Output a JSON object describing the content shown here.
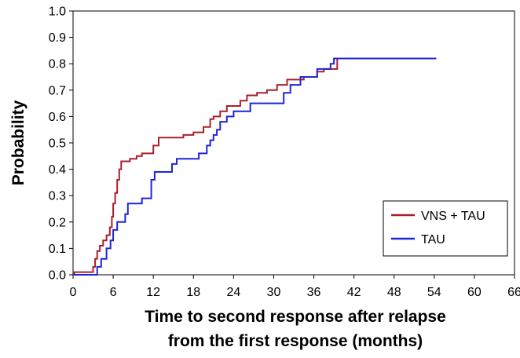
{
  "chart_data": {
    "type": "line",
    "step": true,
    "xlabel": [
      "Time to second response after relapse",
      "from the first response (months)"
    ],
    "ylabel": "Probability",
    "xlim": [
      0,
      66
    ],
    "ylim": [
      0,
      1.0
    ],
    "xticks": [
      "0",
      "6",
      "12",
      "18",
      "24",
      "30",
      "36",
      "42",
      "48",
      "54",
      "60",
      "66"
    ],
    "yticks": [
      "0.0",
      "0.1",
      "0.2",
      "0.3",
      "0.4",
      "0.5",
      "0.6",
      "0.7",
      "0.8",
      "0.9",
      "1.0"
    ],
    "grid": false,
    "legend_position": "lower-right",
    "series": [
      {
        "name": "VNS + TAU",
        "color": "#a8202e",
        "points": [
          [
            0,
            0.0
          ],
          [
            0.2,
            0.0
          ],
          [
            0.2,
            0.01
          ],
          [
            3.0,
            0.01
          ],
          [
            3.0,
            0.03
          ],
          [
            3.3,
            0.03
          ],
          [
            3.3,
            0.06
          ],
          [
            3.6,
            0.06
          ],
          [
            3.6,
            0.09
          ],
          [
            4.0,
            0.09
          ],
          [
            4.0,
            0.11
          ],
          [
            4.5,
            0.11
          ],
          [
            4.5,
            0.13
          ],
          [
            5.0,
            0.13
          ],
          [
            5.0,
            0.15
          ],
          [
            5.5,
            0.15
          ],
          [
            5.5,
            0.18
          ],
          [
            5.8,
            0.18
          ],
          [
            5.8,
            0.22
          ],
          [
            6.0,
            0.22
          ],
          [
            6.0,
            0.27
          ],
          [
            6.3,
            0.27
          ],
          [
            6.3,
            0.31
          ],
          [
            6.6,
            0.31
          ],
          [
            6.6,
            0.36
          ],
          [
            6.9,
            0.36
          ],
          [
            6.9,
            0.4
          ],
          [
            7.2,
            0.4
          ],
          [
            7.2,
            0.43
          ],
          [
            8.5,
            0.43
          ],
          [
            8.5,
            0.44
          ],
          [
            9.5,
            0.44
          ],
          [
            9.5,
            0.45
          ],
          [
            10.3,
            0.45
          ],
          [
            10.3,
            0.46
          ],
          [
            12.0,
            0.46
          ],
          [
            12.0,
            0.49
          ],
          [
            12.8,
            0.49
          ],
          [
            12.8,
            0.52
          ],
          [
            16.5,
            0.52
          ],
          [
            16.5,
            0.53
          ],
          [
            18.0,
            0.53
          ],
          [
            18.0,
            0.54
          ],
          [
            19.5,
            0.54
          ],
          [
            19.5,
            0.56
          ],
          [
            20.5,
            0.56
          ],
          [
            20.5,
            0.59
          ],
          [
            21.0,
            0.59
          ],
          [
            21.0,
            0.6
          ],
          [
            22.0,
            0.6
          ],
          [
            22.0,
            0.62
          ],
          [
            23.0,
            0.62
          ],
          [
            23.0,
            0.64
          ],
          [
            25.0,
            0.64
          ],
          [
            25.0,
            0.66
          ],
          [
            26.0,
            0.66
          ],
          [
            26.0,
            0.68
          ],
          [
            27.5,
            0.68
          ],
          [
            27.5,
            0.69
          ],
          [
            29.0,
            0.69
          ],
          [
            29.0,
            0.7
          ],
          [
            30.5,
            0.7
          ],
          [
            30.5,
            0.72
          ],
          [
            32.0,
            0.72
          ],
          [
            32.0,
            0.74
          ],
          [
            34.5,
            0.74
          ],
          [
            34.5,
            0.75
          ],
          [
            36.5,
            0.75
          ],
          [
            36.5,
            0.77
          ],
          [
            37.5,
            0.77
          ],
          [
            37.5,
            0.78
          ],
          [
            39.5,
            0.78
          ],
          [
            39.5,
            0.82
          ],
          [
            53.0,
            0.82
          ]
        ]
      },
      {
        "name": "TAU",
        "color": "#1f24d6",
        "points": [
          [
            0,
            0.0
          ],
          [
            3.6,
            0.0
          ],
          [
            3.6,
            0.03
          ],
          [
            4.2,
            0.03
          ],
          [
            4.2,
            0.06
          ],
          [
            5.0,
            0.06
          ],
          [
            5.0,
            0.1
          ],
          [
            5.6,
            0.1
          ],
          [
            5.6,
            0.13
          ],
          [
            6.0,
            0.13
          ],
          [
            6.0,
            0.17
          ],
          [
            6.6,
            0.17
          ],
          [
            6.6,
            0.2
          ],
          [
            7.8,
            0.2
          ],
          [
            7.8,
            0.23
          ],
          [
            8.2,
            0.23
          ],
          [
            8.2,
            0.27
          ],
          [
            10.3,
            0.27
          ],
          [
            10.3,
            0.29
          ],
          [
            11.7,
            0.29
          ],
          [
            11.7,
            0.36
          ],
          [
            12.2,
            0.36
          ],
          [
            12.2,
            0.39
          ],
          [
            14.8,
            0.39
          ],
          [
            14.8,
            0.42
          ],
          [
            15.5,
            0.42
          ],
          [
            15.5,
            0.44
          ],
          [
            18.8,
            0.44
          ],
          [
            18.8,
            0.46
          ],
          [
            20.0,
            0.46
          ],
          [
            20.0,
            0.49
          ],
          [
            20.5,
            0.49
          ],
          [
            20.5,
            0.51
          ],
          [
            21.0,
            0.51
          ],
          [
            21.0,
            0.53
          ],
          [
            21.5,
            0.53
          ],
          [
            21.5,
            0.55
          ],
          [
            22.0,
            0.55
          ],
          [
            22.0,
            0.58
          ],
          [
            23.0,
            0.58
          ],
          [
            23.0,
            0.6
          ],
          [
            24.0,
            0.6
          ],
          [
            24.0,
            0.62
          ],
          [
            26.5,
            0.62
          ],
          [
            26.5,
            0.65
          ],
          [
            31.5,
            0.65
          ],
          [
            31.5,
            0.69
          ],
          [
            32.5,
            0.69
          ],
          [
            32.5,
            0.72
          ],
          [
            34.0,
            0.72
          ],
          [
            34.0,
            0.75
          ],
          [
            36.5,
            0.75
          ],
          [
            36.5,
            0.78
          ],
          [
            38.5,
            0.78
          ],
          [
            38.5,
            0.8
          ],
          [
            39.0,
            0.8
          ],
          [
            39.0,
            0.82
          ],
          [
            54.3,
            0.82
          ]
        ]
      }
    ]
  }
}
